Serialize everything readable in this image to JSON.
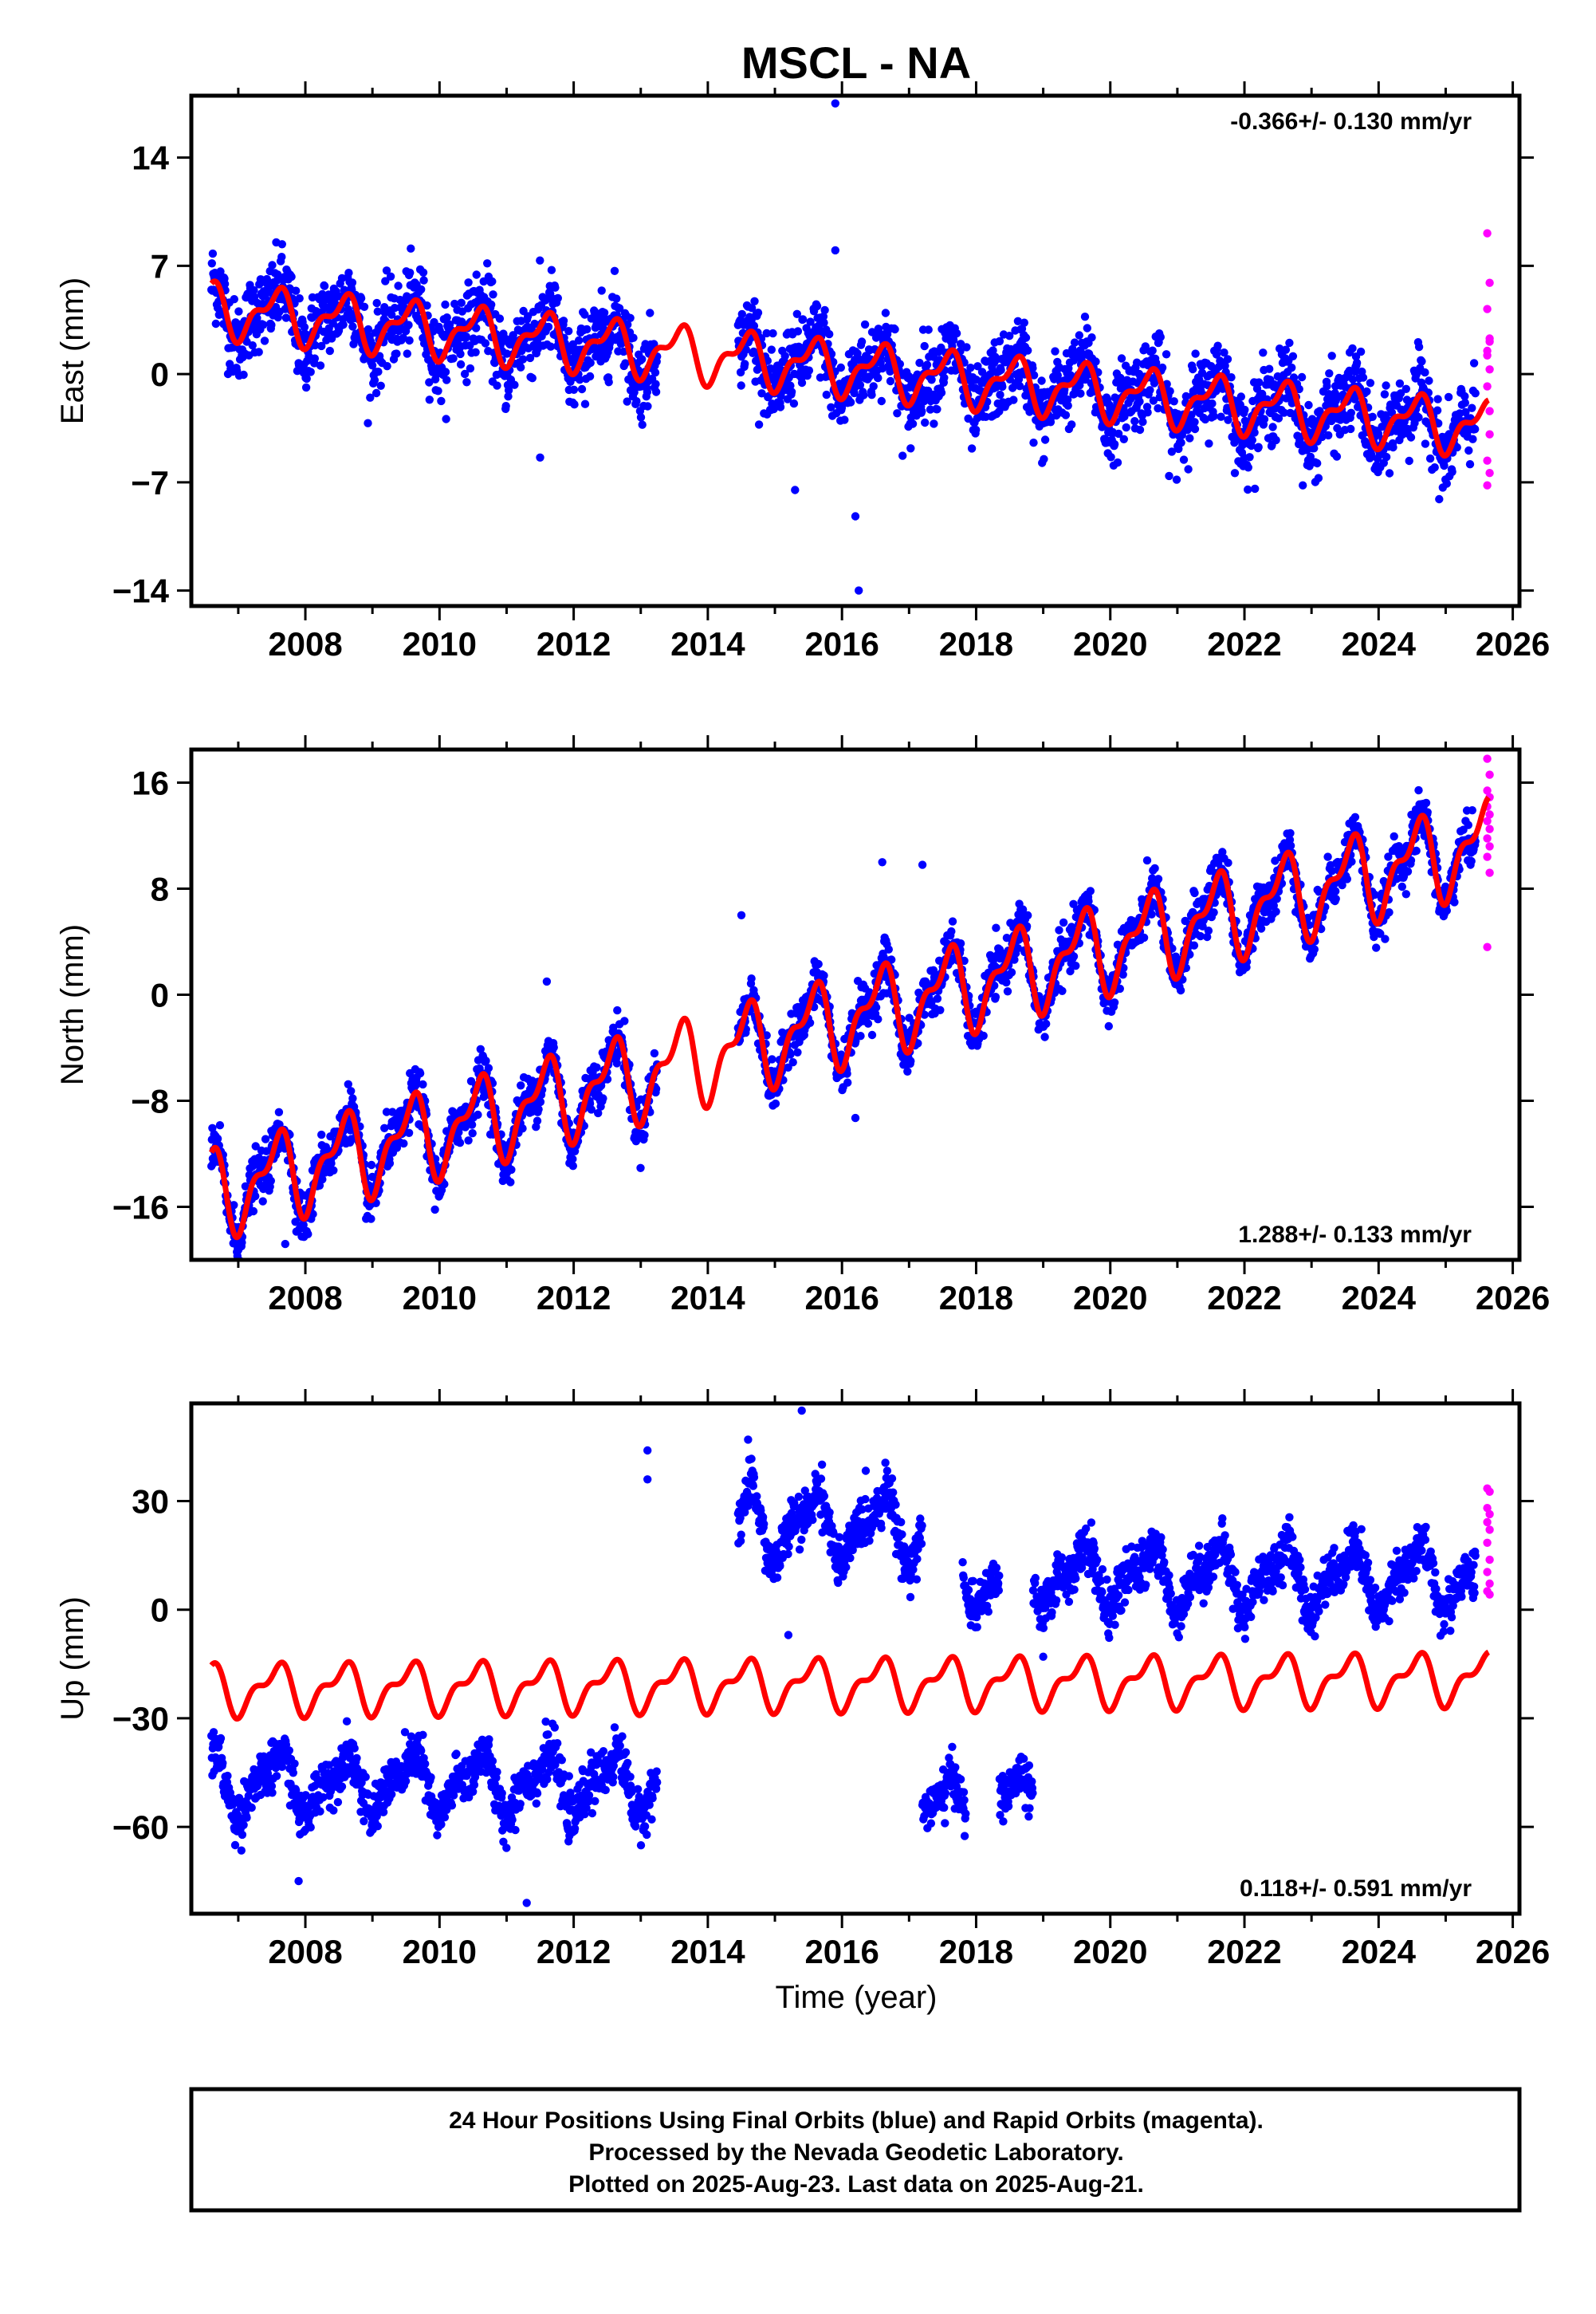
{
  "chart_data": {
    "type": "scatter",
    "title": "MSCL - NA",
    "xlabel": "Time (year)",
    "xlim": [
      2006.3,
      2026.1
    ],
    "xticks": [
      2008,
      2010,
      2012,
      2014,
      2016,
      2018,
      2020,
      2022,
      2024,
      2026
    ],
    "legend": [],
    "footer": [
      "24 Hour Positions Using Final Orbits (blue) and Rapid Orbits (magenta).",
      "Processed by the Nevada Geodetic Laboratory.",
      "Plotted on 2025-Aug-23. Last data on 2025-Aug-21."
    ],
    "colors": {
      "final": "#0000ff",
      "rapid": "#ff00ff",
      "model": "#ff0000"
    },
    "panels": [
      {
        "name": "east",
        "ylabel": "East (mm)",
        "ylim": [
          -15,
          18
        ],
        "yticks": [
          -14,
          -7,
          0,
          7,
          14
        ],
        "rate": "-0.366+/- 0.130 mm/yr",
        "rate_position": "top-right",
        "series": [
          {
            "kind": "final",
            "segments": [
              {
                "t0": 2006.6,
                "t1": 2013.25,
                "offset": 0,
                "seasonal": 1.5,
                "scatter": 2.4
              },
              {
                "t0": 2014.45,
                "t1": 2025.45,
                "offset": 0,
                "seasonal": 1.6,
                "scatter": 2.3
              }
            ]
          },
          {
            "kind": "rapid",
            "t0": 2025.45,
            "t1": 2025.64,
            "values": [
              9.1,
              5.9,
              4.2,
              2.1,
              1.5,
              0.3,
              -0.8,
              -2.4,
              -5.6,
              -6.4,
              -7.2,
              -3.9,
              1.2,
              2.3
            ]
          },
          {
            "kind": "model",
            "x": [
              2006.6,
              2025.64
            ],
            "y_start": 4.2,
            "y_end": -3.5,
            "seasonal": 1.5
          }
        ],
        "outliers": [
          {
            "x": 2015.9,
            "y": 17.5
          },
          {
            "x": 2016.25,
            "y": -14.0
          },
          {
            "x": 2016.2,
            "y": -9.2
          },
          {
            "x": 2011.5,
            "y": -5.4
          },
          {
            "x": 2015.3,
            "y": -7.5
          },
          {
            "x": 2015.9,
            "y": 8.0
          }
        ]
      },
      {
        "name": "north",
        "ylabel": "North (mm)",
        "ylim": [
          -20,
          18.5
        ],
        "yticks": [
          -16,
          -8,
          0,
          8,
          16
        ],
        "rate": "1.288+/- 0.133 mm/yr",
        "rate_position": "bottom-right",
        "series": [
          {
            "kind": "final",
            "segments": [
              {
                "t0": 2006.6,
                "t1": 2013.25,
                "offset": 0,
                "seasonal": 2.8,
                "scatter": 1.7
              },
              {
                "t0": 2014.45,
                "t1": 2025.45,
                "offset": 0,
                "seasonal": 2.8,
                "scatter": 1.7
              }
            ]
          },
          {
            "kind": "rapid",
            "t0": 2025.45,
            "t1": 2025.64,
            "values": [
              17.8,
              16.6,
              15.4,
              14.9,
              14.2,
              13.6,
              13.1,
              12.5,
              11.8,
              11.2,
              10.4,
              9.2,
              3.6
            ]
          },
          {
            "kind": "model",
            "x": [
              2006.6,
              2025.64
            ],
            "y_start": -15.0,
            "y_end": 11.5,
            "seasonal": 2.8
          }
        ],
        "outliers": [
          {
            "x": 2007.7,
            "y": -18.8
          },
          {
            "x": 2016.2,
            "y": -9.3
          },
          {
            "x": 2016.6,
            "y": 10.0
          },
          {
            "x": 2017.2,
            "y": 9.8
          },
          {
            "x": 2011.6,
            "y": 1.0
          },
          {
            "x": 2014.5,
            "y": 6.0
          }
        ]
      },
      {
        "name": "up",
        "ylabel": "Up (mm)",
        "ylim": [
          -84,
          57
        ],
        "yticks": [
          -60,
          -30,
          0,
          30
        ],
        "rate": "0.118+/- 0.591 mm/yr",
        "rate_position": "bottom-right",
        "series": [
          {
            "kind": "final",
            "segments": [
              {
                "t0": 2006.6,
                "t1": 2013.25,
                "offset": -48,
                "seasonal": 7,
                "scatter": 6
              },
              {
                "t0": 2014.45,
                "t1": 2017.2,
                "offset": 23,
                "seasonal": 8,
                "scatter": 6
              },
              {
                "t0": 2017.2,
                "t1": 2017.85,
                "offset": -55,
                "seasonal": 7,
                "scatter": 6
              },
              {
                "t0": 2017.8,
                "t1": 2018.35,
                "offset": 7,
                "seasonal": 5,
                "scatter": 5
              },
              {
                "t0": 2018.35,
                "t1": 2018.85,
                "offset": -52,
                "seasonal": 5,
                "scatter": 6
              },
              {
                "t0": 2018.85,
                "t1": 2025.45,
                "offset": 9,
                "seasonal": 7,
                "scatter": 6
              }
            ]
          },
          {
            "kind": "rapid",
            "t0": 2025.45,
            "t1": 2025.64,
            "values": [
              33.5,
              32.6,
              28.1,
              26.4,
              24.2,
              22.1,
              18.5,
              13.8,
              10.4,
              7.2,
              5.1,
              4.2
            ]
          },
          {
            "kind": "model",
            "x": [
              2006.6,
              2025.64
            ],
            "y_start": -22,
            "y_end": -19,
            "seasonal": 6
          }
        ],
        "outliers": [
          {
            "x": 2011.3,
            "y": -81
          },
          {
            "x": 2007.9,
            "y": -75
          },
          {
            "x": 2013.1,
            "y": 44
          },
          {
            "x": 2013.1,
            "y": 36
          },
          {
            "x": 2015.4,
            "y": 55
          },
          {
            "x": 2014.6,
            "y": 47
          },
          {
            "x": 2015.2,
            "y": -7
          },
          {
            "x": 2019.0,
            "y": -13
          }
        ]
      }
    ]
  }
}
